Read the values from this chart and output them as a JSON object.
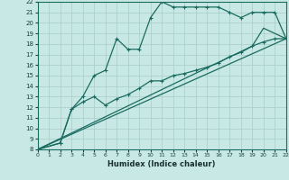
{
  "xlabel": "Humidex (Indice chaleur)",
  "bg_color": "#c8e8e5",
  "grid_color": "#a8ccc8",
  "line_color": "#1a6b60",
  "xlim": [
    0,
    22
  ],
  "ylim": [
    8,
    22
  ],
  "xticks": [
    0,
    1,
    2,
    3,
    4,
    5,
    6,
    7,
    8,
    9,
    10,
    11,
    12,
    13,
    14,
    15,
    16,
    17,
    18,
    19,
    20,
    21,
    22
  ],
  "yticks": [
    8,
    9,
    10,
    11,
    12,
    13,
    14,
    15,
    16,
    17,
    18,
    19,
    20,
    21,
    22
  ],
  "line1_x": [
    0,
    2,
    3,
    4,
    5,
    6,
    7,
    8,
    9,
    10,
    11,
    12,
    13,
    14,
    15,
    16,
    17,
    18,
    19,
    20,
    21,
    22
  ],
  "line1_y": [
    8.0,
    8.6,
    11.8,
    13.0,
    15.0,
    15.5,
    18.5,
    17.5,
    17.5,
    20.5,
    22.0,
    21.5,
    21.5,
    21.5,
    21.5,
    21.5,
    21.0,
    20.5,
    21.0,
    21.0,
    21.0,
    18.5
  ],
  "line2_x": [
    0,
    2,
    3,
    4,
    5,
    6,
    7,
    8,
    9,
    10,
    11,
    12,
    13,
    14,
    15,
    16,
    17,
    18,
    19,
    20,
    21,
    22
  ],
  "line2_y": [
    8.0,
    8.6,
    11.8,
    12.5,
    13.0,
    12.2,
    12.8,
    13.2,
    13.8,
    14.5,
    14.5,
    15.0,
    15.2,
    15.5,
    15.8,
    16.2,
    16.8,
    17.2,
    17.8,
    18.2,
    18.5,
    18.5
  ],
  "line3_x": [
    0,
    22
  ],
  "line3_y": [
    8.0,
    18.5
  ],
  "line4_x": [
    0,
    19,
    20,
    22
  ],
  "line4_y": [
    8.0,
    17.8,
    19.5,
    18.5
  ]
}
